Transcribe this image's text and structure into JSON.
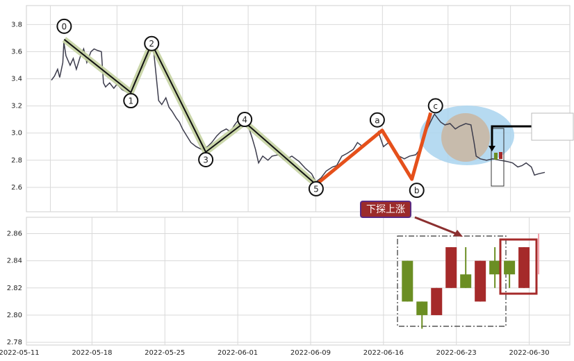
{
  "chart_data": [
    {
      "type": "line",
      "xlim": [
        0.7,
        52.9
      ],
      "ylim": [
        2.42,
        3.94
      ],
      "xticks": [
        3,
        9.4,
        15.7,
        22,
        28.5,
        34.9,
        41.2,
        47.2
      ],
      "yticks": [
        2.6,
        2.8,
        {
          "value": 3.0,
          "label": "3.0"
        },
        3.2,
        3.4,
        3.6,
        3.8
      ],
      "grid": true,
      "color": "#3c3c4c",
      "x": [
        3.1,
        3.4,
        3.7,
        3.9,
        4.2,
        4.3,
        4.5,
        4.9,
        5.2,
        5.5,
        5.9,
        6.2,
        6.5,
        6.9,
        7.2,
        7.5,
        7.9,
        8.1,
        8.3,
        8.7,
        9.1,
        9.4,
        9.9,
        10.4,
        10.7,
        11.1,
        11.4,
        11.7,
        12.1,
        12.3,
        12.6,
        12.9,
        13.1,
        13.4,
        13.7,
        14.1,
        14.4,
        14.7,
        15.1,
        15.4,
        15.7,
        16.1,
        16.5,
        17.0,
        17.5,
        18.1,
        18.5,
        19.0,
        19.4,
        19.9,
        20.3,
        20.7,
        21.2,
        21.7,
        22.1,
        22.4,
        22.7,
        23.0,
        23.4,
        23.9,
        24.3,
        24.9,
        25.5,
        26.2,
        26.9,
        27.5,
        28.1,
        28.5,
        29.0,
        29.5,
        30.1,
        30.5,
        31.0,
        31.5,
        32.1,
        32.5,
        33.0,
        33.5,
        34.1,
        34.5,
        35.0,
        35.5,
        36.1,
        36.5,
        37.0,
        37.5,
        38.1,
        38.5,
        38.9,
        39.2,
        39.5,
        39.9,
        40.2,
        40.5,
        40.9,
        41.4,
        41.9,
        42.3,
        42.9,
        43.4,
        43.7,
        43.9,
        44.3,
        44.9,
        45.5,
        46.2,
        46.9,
        47.4,
        47.9,
        48.3,
        48.7,
        49.2,
        49.5,
        49.9,
        50.5
      ],
      "values": [
        3.39,
        3.42,
        3.47,
        3.41,
        3.52,
        3.67,
        3.57,
        3.5,
        3.55,
        3.47,
        3.57,
        3.62,
        3.52,
        3.6,
        3.62,
        3.61,
        3.6,
        3.37,
        3.34,
        3.37,
        3.33,
        3.36,
        3.32,
        3.3,
        3.29,
        3.38,
        3.42,
        3.47,
        3.5,
        3.55,
        3.67,
        3.62,
        3.47,
        3.24,
        3.21,
        3.26,
        3.19,
        3.16,
        3.11,
        3.08,
        3.03,
        2.98,
        2.93,
        2.9,
        2.88,
        2.9,
        2.93,
        2.98,
        3.01,
        3.03,
        3.01,
        3.06,
        3.11,
        3.12,
        3.03,
        2.96,
        2.88,
        2.78,
        2.83,
        2.8,
        2.83,
        2.84,
        2.8,
        2.83,
        2.79,
        2.74,
        2.7,
        2.64,
        2.67,
        2.72,
        2.75,
        2.76,
        2.83,
        2.85,
        2.88,
        2.93,
        2.9,
        2.93,
        2.96,
        3.01,
        2.9,
        2.93,
        2.88,
        2.83,
        2.81,
        2.83,
        2.84,
        2.88,
        2.96,
        3.03,
        3.08,
        3.14,
        3.11,
        3.08,
        3.06,
        3.07,
        3.03,
        3.05,
        3.07,
        3.06,
        2.93,
        2.83,
        2.81,
        2.8,
        2.81,
        2.8,
        2.79,
        2.78,
        2.75,
        2.76,
        2.78,
        2.75,
        2.69,
        2.7,
        2.71
      ],
      "waves": {
        "labels": [
          "0",
          "1",
          "2",
          "3",
          "4",
          "5",
          "a",
          "b",
          "c"
        ],
        "x": [
          4.33,
          10.73,
          12.73,
          17.93,
          21.67,
          28.53,
          34.87,
          37.73,
          39.53
        ],
        "values": [
          3.69,
          3.3,
          3.66,
          2.86,
          3.08,
          2.62,
          3.02,
          2.66,
          3.15
        ],
        "impulse_color": "#111111",
        "impulse_halo": "#c5d3a2",
        "correction_color": "#e5501b"
      }
    },
    {
      "type": "candlestick",
      "xlim": [
        0.7,
        52.9
      ],
      "ylim": [
        2.778,
        2.872
      ],
      "xticks": [
        {
          "value": 0,
          "label": "2022-05-11"
        },
        {
          "value": 7,
          "label": "2022-05-18"
        },
        {
          "value": 14,
          "label": "2022-05-25"
        },
        {
          "value": 21,
          "label": "2022-06-01"
        },
        {
          "value": 28,
          "label": "2022-06-09"
        },
        {
          "value": 35,
          "label": "2022-06-16"
        },
        {
          "value": 42,
          "label": "2022-06-23"
        },
        {
          "value": 49,
          "label": "2022-06-30"
        }
      ],
      "yticks": [
        2.78,
        {
          "value": 2.8,
          "label": "2.80"
        },
        2.82,
        2.84,
        2.86
      ],
      "grid": true,
      "up_color": "#a52a2a",
      "down_color": "#6b8e23",
      "x": [
        37.3,
        38.7,
        40.1,
        41.5,
        42.9,
        44.3,
        45.7,
        47.1,
        48.5
      ],
      "open": [
        2.84,
        2.81,
        2.8,
        2.82,
        2.83,
        2.81,
        2.84,
        2.84,
        2.82
      ],
      "close": [
        2.81,
        2.8,
        2.82,
        2.85,
        2.82,
        2.84,
        2.83,
        2.83,
        2.85
      ],
      "high": [
        2.84,
        2.81,
        2.82,
        2.85,
        2.85,
        2.84,
        2.85,
        2.84,
        2.85
      ],
      "low": [
        2.81,
        2.79,
        2.8,
        2.82,
        2.82,
        2.81,
        2.82,
        2.82,
        2.82
      ],
      "marker": {
        "x": 49.9,
        "low": 2.83,
        "high": 2.86,
        "color": "#f4a0aa"
      },
      "annotation": "下探上涨"
    }
  ]
}
